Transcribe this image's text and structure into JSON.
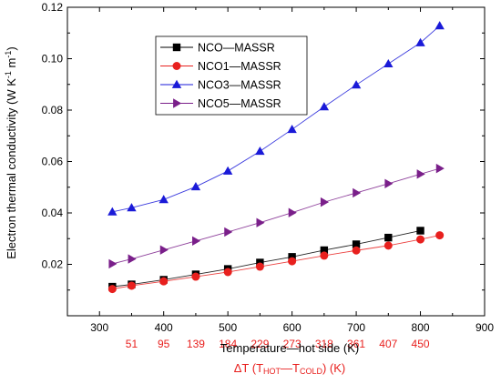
{
  "chart_data": {
    "type": "line",
    "xlabel": "Temperature—hot side (K)",
    "x2label_parts": [
      "ΔT (T",
      "HOT",
      "—T",
      "COLD",
      ") (K)"
    ],
    "ylabel_parts": [
      "Electron thermal conductivity (W K",
      "-1",
      " m",
      "-1",
      ")"
    ],
    "xlim": [
      250,
      900
    ],
    "ylim": [
      0,
      0.12
    ],
    "xticks": [
      "300",
      "400",
      "500",
      "600",
      "700",
      "800",
      "900"
    ],
    "yticks": [
      "0.02",
      "0.04",
      "0.06",
      "0.08",
      "0.10",
      "0.12"
    ],
    "delta_t_ticks": [
      {
        "x": 350,
        "label": "51"
      },
      {
        "x": 400,
        "label": "95"
      },
      {
        "x": 450,
        "label": "139"
      },
      {
        "x": 500,
        "label": "184"
      },
      {
        "x": 550,
        "label": "229"
      },
      {
        "x": 600,
        "label": "273"
      },
      {
        "x": 650,
        "label": "318"
      },
      {
        "x": 700,
        "label": "361"
      },
      {
        "x": 750,
        "label": "407"
      },
      {
        "x": 800,
        "label": "450"
      }
    ],
    "legend_position": "top-left",
    "grid": false,
    "series": [
      {
        "name": "NCO—MASSR",
        "color": "#000000",
        "marker": "square",
        "x": [
          320,
          350,
          400,
          450,
          500,
          550,
          600,
          650,
          700,
          750,
          800
        ],
        "y": [
          0.0113,
          0.0122,
          0.014,
          0.0161,
          0.0182,
          0.0207,
          0.0229,
          0.0255,
          0.0278,
          0.0304,
          0.0331
        ]
      },
      {
        "name": "NCO1—MASSR",
        "color": "#e8201e",
        "marker": "circle",
        "x": [
          320,
          350,
          400,
          450,
          500,
          550,
          600,
          650,
          700,
          750,
          800,
          830
        ],
        "y": [
          0.0104,
          0.0117,
          0.0134,
          0.0152,
          0.017,
          0.0191,
          0.0212,
          0.0234,
          0.0254,
          0.0273,
          0.0297,
          0.0313
        ]
      },
      {
        "name": "NCO3—MASSR",
        "color": "#1a1ad8",
        "marker": "triangle-up",
        "x": [
          320,
          350,
          400,
          450,
          500,
          550,
          600,
          650,
          700,
          750,
          800,
          830
        ],
        "y": [
          0.0404,
          0.042,
          0.0452,
          0.0502,
          0.0563,
          0.064,
          0.0725,
          0.0813,
          0.0898,
          0.098,
          0.1062,
          0.1128
        ]
      },
      {
        "name": "NCO5—MASSR",
        "color": "#7a1f8a",
        "marker": "triangle-right",
        "x": [
          320,
          350,
          400,
          450,
          500,
          550,
          600,
          650,
          700,
          750,
          800,
          830
        ],
        "y": [
          0.0202,
          0.0221,
          0.0256,
          0.0291,
          0.0326,
          0.0362,
          0.0401,
          0.0442,
          0.0478,
          0.0514,
          0.0551,
          0.0573
        ]
      }
    ]
  }
}
